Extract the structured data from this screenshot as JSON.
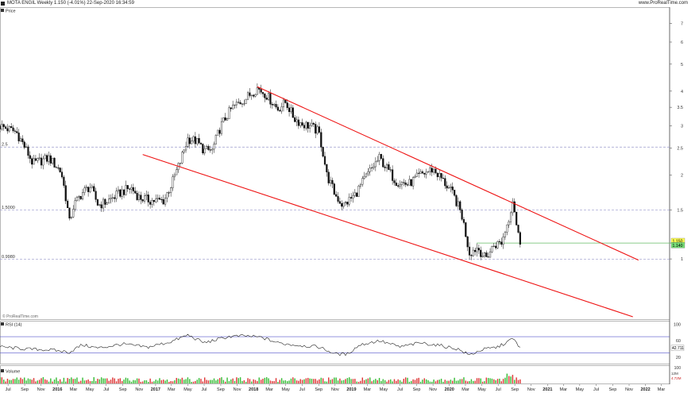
{
  "header": {
    "title": "MOTA ENGIL Weekly 1.150 (-4.01%) 22-Sep-2020 16:34:59",
    "source": "www.ProRealTime.com"
  },
  "chart_data": [
    {
      "type": "candlestick",
      "panel_label": "Price",
      "watermark": "© ProRealTime.com",
      "y_scale": "log",
      "yticks": [
        1,
        1.5,
        2,
        2.5,
        3,
        3.5,
        4,
        5,
        6,
        7
      ],
      "ytick_labels": [
        "1",
        "1.5",
        "2",
        "2.5",
        "3",
        "3.5",
        "4",
        "5",
        "6",
        "7"
      ],
      "horizontal_levels": [
        {
          "value": 2.52,
          "label": "2.5",
          "color": "#9999cc"
        },
        {
          "value": 1.5,
          "label": "1.5000",
          "color": "#9999cc"
        },
        {
          "value": 0.998,
          "label": "0.9980",
          "color": "#9999cc"
        },
        {
          "value": 1.14,
          "label": "",
          "color": "#66bb66"
        }
      ],
      "last_price_labels": [
        "1.150",
        "1.140"
      ],
      "channel_lines": [
        {
          "from": {
            "date": "2018-01-15",
            "value": 4.15
          },
          "to": {
            "date": "2021-12-06",
            "value": 0.99
          },
          "color": "#ee1111"
        },
        {
          "from": {
            "date": "2016-11-14",
            "value": 2.37
          },
          "to": {
            "date": "2021-11-15",
            "value": 0.62
          },
          "color": "#ee1111"
        }
      ],
      "series": [
        {
          "date": "2015-06-01",
          "value": 3.0
        },
        {
          "date": "2015-08-01",
          "value": 2.85
        },
        {
          "date": "2015-10-01",
          "value": 2.2
        },
        {
          "date": "2015-12-01",
          "value": 2.3
        },
        {
          "date": "2016-01-15",
          "value": 2.05
        },
        {
          "date": "2016-02-15",
          "value": 1.35
        },
        {
          "date": "2016-03-01",
          "value": 1.55
        },
        {
          "date": "2016-04-01",
          "value": 1.72
        },
        {
          "date": "2016-05-01",
          "value": 1.82
        },
        {
          "date": "2016-06-01",
          "value": 1.56
        },
        {
          "date": "2016-07-01",
          "value": 1.6
        },
        {
          "date": "2016-09-01",
          "value": 1.75
        },
        {
          "date": "2016-10-01",
          "value": 1.8
        },
        {
          "date": "2016-11-01",
          "value": 1.66
        },
        {
          "date": "2016-12-15",
          "value": 1.62
        },
        {
          "date": "2017-02-01",
          "value": 1.62
        },
        {
          "date": "2017-03-01",
          "value": 1.85
        },
        {
          "date": "2017-04-01",
          "value": 2.2
        },
        {
          "date": "2017-05-01",
          "value": 2.7
        },
        {
          "date": "2017-06-01",
          "value": 2.65
        },
        {
          "date": "2017-07-01",
          "value": 2.45
        },
        {
          "date": "2017-08-01",
          "value": 2.45
        },
        {
          "date": "2017-09-01",
          "value": 3.0
        },
        {
          "date": "2017-10-15",
          "value": 3.5
        },
        {
          "date": "2017-12-01",
          "value": 3.75
        },
        {
          "date": "2018-01-15",
          "value": 4.1
        },
        {
          "date": "2018-02-15",
          "value": 3.9
        },
        {
          "date": "2018-04-01",
          "value": 3.45
        },
        {
          "date": "2018-05-01",
          "value": 3.65
        },
        {
          "date": "2018-06-01",
          "value": 3.2
        },
        {
          "date": "2018-07-01",
          "value": 3.05
        },
        {
          "date": "2018-08-01",
          "value": 3.0
        },
        {
          "date": "2018-09-01",
          "value": 2.85
        },
        {
          "date": "2018-10-01",
          "value": 2.0
        },
        {
          "date": "2018-11-01",
          "value": 1.7
        },
        {
          "date": "2018-12-01",
          "value": 1.55
        },
        {
          "date": "2019-01-15",
          "value": 1.7
        },
        {
          "date": "2019-03-01",
          "value": 2.0
        },
        {
          "date": "2019-04-15",
          "value": 2.3
        },
        {
          "date": "2019-05-15",
          "value": 2.1
        },
        {
          "date": "2019-06-15",
          "value": 1.9
        },
        {
          "date": "2019-08-01",
          "value": 1.85
        },
        {
          "date": "2019-09-15",
          "value": 2.0
        },
        {
          "date": "2019-11-01",
          "value": 2.1
        },
        {
          "date": "2019-12-01",
          "value": 1.95
        },
        {
          "date": "2020-01-15",
          "value": 1.7
        },
        {
          "date": "2020-02-15",
          "value": 1.45
        },
        {
          "date": "2020-03-15",
          "value": 1.05
        },
        {
          "date": "2020-04-15",
          "value": 1.1
        },
        {
          "date": "2020-05-15",
          "value": 1.0
        },
        {
          "date": "2020-06-15",
          "value": 1.12
        },
        {
          "date": "2020-07-15",
          "value": 1.15
        },
        {
          "date": "2020-08-10",
          "value": 1.4
        },
        {
          "date": "2020-08-25",
          "value": 1.65
        },
        {
          "date": "2020-09-10",
          "value": 1.25
        },
        {
          "date": "2020-09-22",
          "value": 1.15
        }
      ]
    },
    {
      "type": "line",
      "panel_label": "RSI (14)",
      "yticks": [
        100,
        60,
        20
      ],
      "ytick_labels": [
        "100",
        "60",
        "20"
      ],
      "levels": [
        70,
        30
      ],
      "last_value_label": "42.711",
      "series": [
        {
          "date": "2015-06-01",
          "value": 45
        },
        {
          "date": "2015-09-01",
          "value": 40
        },
        {
          "date": "2015-12-01",
          "value": 38
        },
        {
          "date": "2016-02-15",
          "value": 32
        },
        {
          "date": "2016-04-01",
          "value": 50
        },
        {
          "date": "2016-06-01",
          "value": 42
        },
        {
          "date": "2016-09-01",
          "value": 52
        },
        {
          "date": "2016-12-01",
          "value": 44
        },
        {
          "date": "2017-03-01",
          "value": 58
        },
        {
          "date": "2017-05-01",
          "value": 74
        },
        {
          "date": "2017-07-01",
          "value": 55
        },
        {
          "date": "2017-10-01",
          "value": 70
        },
        {
          "date": "2017-12-01",
          "value": 72
        },
        {
          "date": "2018-02-01",
          "value": 68
        },
        {
          "date": "2018-04-01",
          "value": 55
        },
        {
          "date": "2018-06-01",
          "value": 50
        },
        {
          "date": "2018-09-01",
          "value": 45
        },
        {
          "date": "2018-11-01",
          "value": 28
        },
        {
          "date": "2018-12-15",
          "value": 27
        },
        {
          "date": "2019-02-01",
          "value": 50
        },
        {
          "date": "2019-04-15",
          "value": 60
        },
        {
          "date": "2019-07-01",
          "value": 45
        },
        {
          "date": "2019-09-15",
          "value": 55
        },
        {
          "date": "2019-12-01",
          "value": 48
        },
        {
          "date": "2020-02-01",
          "value": 40
        },
        {
          "date": "2020-03-15",
          "value": 25
        },
        {
          "date": "2020-05-01",
          "value": 38
        },
        {
          "date": "2020-07-01",
          "value": 45
        },
        {
          "date": "2020-08-25",
          "value": 65
        },
        {
          "date": "2020-09-22",
          "value": 42.7
        }
      ]
    },
    {
      "type": "bar",
      "panel_label": "Volume",
      "ytick_labels": [
        "100"
      ],
      "last_value_labels": [
        "12M",
        "4.72M"
      ],
      "series_color_up": "#33bb33",
      "series_color_down": "#dd3333"
    }
  ],
  "x_axis": {
    "labels": [
      {
        "date": "2015-07-01",
        "label": "Jul"
      },
      {
        "date": "2015-09-01",
        "label": "Sep"
      },
      {
        "date": "2015-11-01",
        "label": "Nov"
      },
      {
        "date": "2016-01-01",
        "label": "2016"
      },
      {
        "date": "2016-03-01",
        "label": "Mar"
      },
      {
        "date": "2016-05-01",
        "label": "May"
      },
      {
        "date": "2016-07-01",
        "label": "Jul"
      },
      {
        "date": "2016-09-01",
        "label": "Sep"
      },
      {
        "date": "2016-11-01",
        "label": "Nov"
      },
      {
        "date": "2017-01-01",
        "label": "2017"
      },
      {
        "date": "2017-03-01",
        "label": "Mar"
      },
      {
        "date": "2017-05-01",
        "label": "May"
      },
      {
        "date": "2017-07-01",
        "label": "Jul"
      },
      {
        "date": "2017-09-01",
        "label": "Sep"
      },
      {
        "date": "2017-11-01",
        "label": "Nov"
      },
      {
        "date": "2018-01-01",
        "label": "2018"
      },
      {
        "date": "2018-03-01",
        "label": "Mar"
      },
      {
        "date": "2018-05-01",
        "label": "May"
      },
      {
        "date": "2018-07-01",
        "label": "Jul"
      },
      {
        "date": "2018-09-01",
        "label": "Sep"
      },
      {
        "date": "2018-11-01",
        "label": "Nov"
      },
      {
        "date": "2019-01-01",
        "label": "2019"
      },
      {
        "date": "2019-03-01",
        "label": "Mar"
      },
      {
        "date": "2019-05-01",
        "label": "May"
      },
      {
        "date": "2019-07-01",
        "label": "Jul"
      },
      {
        "date": "2019-09-01",
        "label": "Sep"
      },
      {
        "date": "2019-11-01",
        "label": "Nov"
      },
      {
        "date": "2020-01-01",
        "label": "2020"
      },
      {
        "date": "2020-03-01",
        "label": "Mar"
      },
      {
        "date": "2020-05-01",
        "label": "May"
      },
      {
        "date": "2020-07-01",
        "label": "Jul"
      },
      {
        "date": "2020-09-01",
        "label": "Sep"
      },
      {
        "date": "2020-11-01",
        "label": "Nov"
      },
      {
        "date": "2021-01-01",
        "label": "2021"
      },
      {
        "date": "2021-03-01",
        "label": "Mar"
      },
      {
        "date": "2021-05-01",
        "label": "May"
      },
      {
        "date": "2021-07-01",
        "label": "Jul"
      },
      {
        "date": "2021-09-01",
        "label": "Sep"
      },
      {
        "date": "2021-11-01",
        "label": "Nov"
      },
      {
        "date": "2022-01-01",
        "label": "2022"
      },
      {
        "date": "2022-03-01",
        "label": "Mar"
      }
    ]
  }
}
